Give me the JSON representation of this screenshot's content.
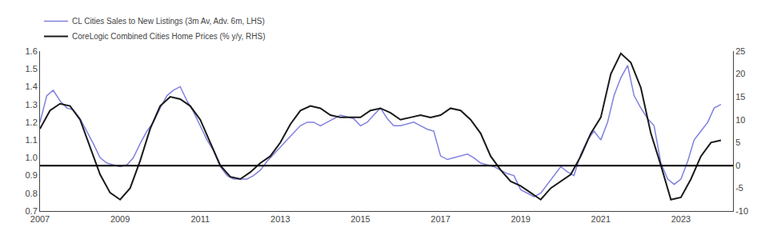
{
  "chart_data": {
    "type": "line",
    "series": [
      {
        "name": "CL Cities Sales to New Listings (3m Av, Adv. 6m, LHS)",
        "color": "#8080e0",
        "axis": "y",
        "x": [
          2007.0,
          2007.17,
          2007.33,
          2007.5,
          2007.67,
          2007.83,
          2008.0,
          2008.17,
          2008.33,
          2008.5,
          2008.67,
          2008.83,
          2009.0,
          2009.17,
          2009.33,
          2009.5,
          2009.67,
          2009.83,
          2010.0,
          2010.17,
          2010.33,
          2010.5,
          2010.67,
          2010.83,
          2011.0,
          2011.17,
          2011.33,
          2011.5,
          2011.67,
          2011.83,
          2012.0,
          2012.17,
          2012.33,
          2012.5,
          2012.67,
          2012.83,
          2013.0,
          2013.17,
          2013.33,
          2013.5,
          2013.67,
          2013.83,
          2014.0,
          2014.17,
          2014.33,
          2014.5,
          2014.67,
          2014.83,
          2015.0,
          2015.17,
          2015.33,
          2015.5,
          2015.67,
          2015.83,
          2016.0,
          2016.17,
          2016.33,
          2016.5,
          2016.67,
          2016.83,
          2017.0,
          2017.17,
          2017.33,
          2017.5,
          2017.67,
          2017.83,
          2018.0,
          2018.17,
          2018.33,
          2018.5,
          2018.67,
          2018.83,
          2019.0,
          2019.17,
          2019.33,
          2019.5,
          2019.67,
          2019.83,
          2020.0,
          2020.17,
          2020.33,
          2020.5,
          2020.67,
          2020.83,
          2021.0,
          2021.17,
          2021.33,
          2021.5,
          2021.67,
          2021.83,
          2022.0,
          2022.17,
          2022.33,
          2022.5,
          2022.67,
          2022.83,
          2023.0,
          2023.17,
          2023.33,
          2023.5,
          2023.67,
          2023.83,
          2024.0
        ],
        "values": [
          1.2,
          1.35,
          1.38,
          1.32,
          1.28,
          1.27,
          1.22,
          1.15,
          1.08,
          1.0,
          0.97,
          0.96,
          0.95,
          0.96,
          1.0,
          1.08,
          1.15,
          1.2,
          1.28,
          1.35,
          1.38,
          1.4,
          1.32,
          1.26,
          1.18,
          1.1,
          1.04,
          0.95,
          0.9,
          0.88,
          0.88,
          0.88,
          0.9,
          0.93,
          0.98,
          1.02,
          1.06,
          1.1,
          1.14,
          1.18,
          1.2,
          1.2,
          1.18,
          1.2,
          1.22,
          1.24,
          1.23,
          1.22,
          1.18,
          1.2,
          1.24,
          1.28,
          1.22,
          1.18,
          1.18,
          1.19,
          1.2,
          1.18,
          1.16,
          1.15,
          1.01,
          0.99,
          1.0,
          1.01,
          1.02,
          1.0,
          0.97,
          0.96,
          0.95,
          0.93,
          0.91,
          0.9,
          0.82,
          0.8,
          0.78,
          0.8,
          0.85,
          0.9,
          0.95,
          0.92,
          0.9,
          1.02,
          1.1,
          1.15,
          1.1,
          1.2,
          1.35,
          1.45,
          1.52,
          1.35,
          1.28,
          1.22,
          1.18,
          0.97,
          0.88,
          0.85,
          0.88,
          0.98,
          1.1,
          1.15,
          1.2,
          1.28,
          1.3
        ]
      },
      {
        "name": "CoreLogic Combined Cities Home Prices (% y/y, RHS)",
        "color": "#1a1a1a",
        "axis": "y2",
        "x": [
          2007.0,
          2007.25,
          2007.5,
          2007.75,
          2008.0,
          2008.25,
          2008.5,
          2008.75,
          2009.0,
          2009.25,
          2009.5,
          2009.75,
          2010.0,
          2010.25,
          2010.5,
          2010.75,
          2011.0,
          2011.25,
          2011.5,
          2011.75,
          2012.0,
          2012.25,
          2012.5,
          2012.75,
          2013.0,
          2013.25,
          2013.5,
          2013.75,
          2014.0,
          2014.25,
          2014.5,
          2014.75,
          2015.0,
          2015.25,
          2015.5,
          2015.75,
          2016.0,
          2016.25,
          2016.5,
          2016.75,
          2017.0,
          2017.25,
          2017.5,
          2017.75,
          2018.0,
          2018.25,
          2018.5,
          2018.75,
          2019.0,
          2019.25,
          2019.5,
          2019.75,
          2020.0,
          2020.25,
          2020.5,
          2020.75,
          2021.0,
          2021.25,
          2021.5,
          2021.75,
          2022.0,
          2022.25,
          2022.5,
          2022.75,
          2023.0,
          2023.25,
          2023.5,
          2023.75,
          2024.0
        ],
        "values": [
          8.0,
          12.0,
          13.5,
          13.0,
          10.0,
          4.0,
          -2.0,
          -6.0,
          -7.5,
          -5.0,
          1.0,
          8.0,
          13.0,
          15.0,
          14.5,
          13.0,
          10.0,
          5.0,
          0.0,
          -2.5,
          -3.0,
          -1.5,
          0.5,
          2.0,
          5.0,
          9.0,
          12.0,
          13.0,
          12.5,
          11.0,
          10.5,
          10.5,
          10.5,
          12.0,
          12.5,
          11.5,
          10.0,
          10.5,
          11.0,
          10.5,
          11.0,
          12.5,
          12.0,
          10.0,
          7.0,
          2.0,
          -1.0,
          -3.5,
          -4.5,
          -6.0,
          -7.5,
          -5.0,
          -3.5,
          -2.0,
          2.0,
          7.0,
          10.5,
          20.0,
          24.5,
          22.5,
          17.0,
          7.0,
          0.0,
          -7.5,
          -7.0,
          -3.0,
          2.0,
          5.0,
          5.5
        ]
      }
    ],
    "hline": {
      "y": 0.955,
      "axis": "y",
      "color": "#000000"
    },
    "xlim": [
      2007,
      2024.3
    ],
    "xticks": [
      2007,
      2009,
      2011,
      2013,
      2015,
      2017,
      2019,
      2021,
      2023
    ],
    "ylim": [
      0.7,
      1.6
    ],
    "yticks": [
      0.7,
      0.8,
      0.9,
      {
        "value": 1.0,
        "label": "1.0"
      },
      1.1,
      1.2,
      1.3,
      1.4,
      1.5,
      1.6
    ],
    "y2lim": [
      -10,
      25
    ],
    "y2ticks": [
      -10,
      -5,
      0,
      5,
      10,
      15,
      20,
      25
    ],
    "grid": false,
    "legend": "upper left"
  }
}
